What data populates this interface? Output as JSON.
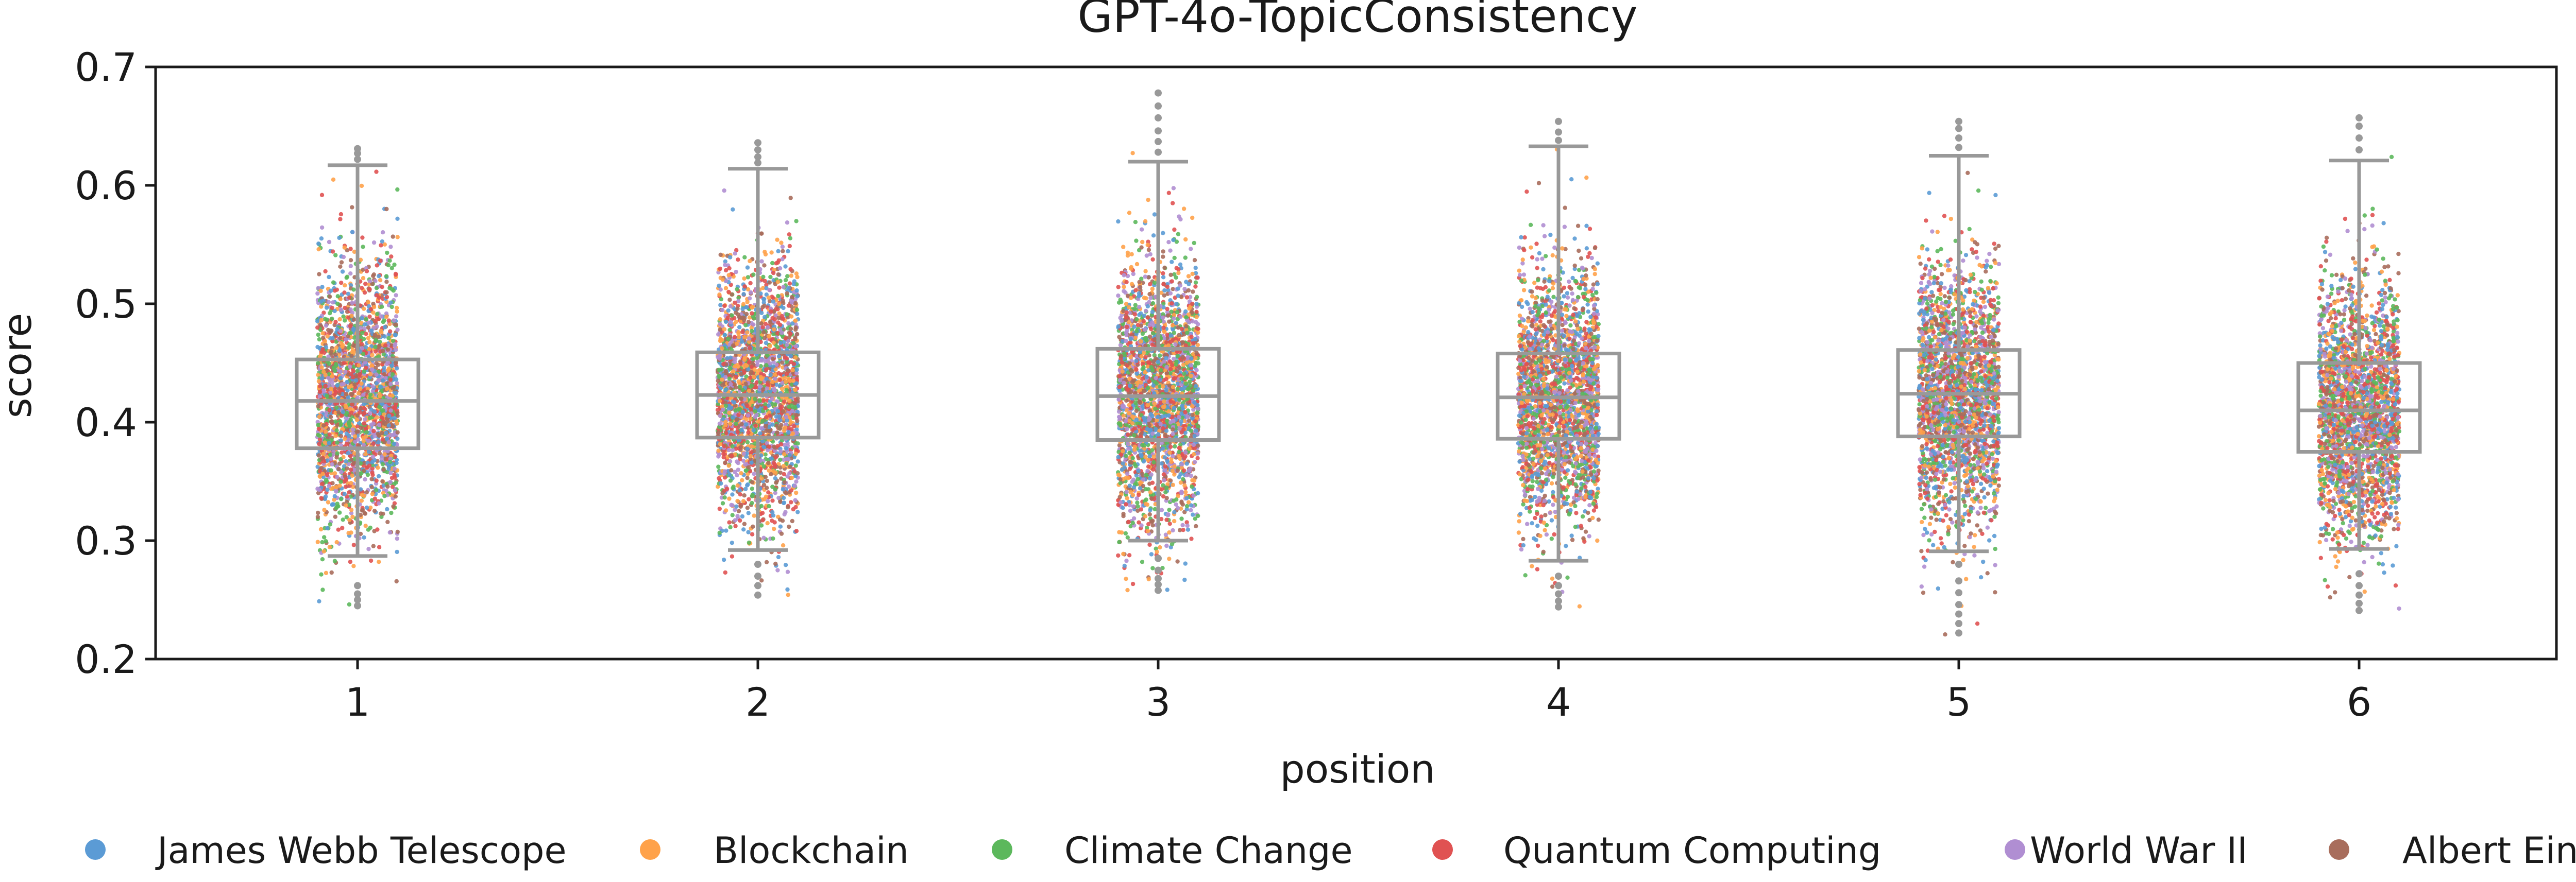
{
  "chart_data": {
    "type": "box-strip",
    "title": "GPT-4o-TopicConsistency",
    "xlabel": "position",
    "ylabel": "score",
    "ylim": [
      0.2,
      0.7
    ],
    "yticks": [
      "0.2",
      "0.3",
      "0.4",
      "0.5",
      "0.6",
      "0.7"
    ],
    "categories": [
      "1",
      "2",
      "3",
      "4",
      "5",
      "6"
    ],
    "grid": false,
    "legend": {
      "placement": "bottom",
      "entries": [
        {
          "name": "James Webb Telescope",
          "color": "#5b9bd5"
        },
        {
          "name": "Blockchain",
          "color": "#ffa24a"
        },
        {
          "name": "Climate Change",
          "color": "#5cb85c"
        },
        {
          "name": "Quantum Computing",
          "color": "#e05252"
        },
        {
          "name": "World War II",
          "color": "#b08ed2"
        },
        {
          "name": "Albert Einstein",
          "color": "#a86d5c"
        }
      ]
    },
    "box_color": "#999999",
    "outlier_color": "#999999",
    "boxes": [
      {
        "position": "1",
        "q1": 0.378,
        "median": 0.418,
        "q3": 0.453,
        "whisker_low": 0.287,
        "whisker_high": 0.617,
        "outliers": [
          0.245,
          0.25,
          0.255,
          0.262,
          0.622,
          0.627,
          0.631
        ],
        "points_min": 0.245,
        "points_max": 0.633
      },
      {
        "position": "2",
        "q1": 0.387,
        "median": 0.423,
        "q3": 0.459,
        "whisker_low": 0.292,
        "whisker_high": 0.614,
        "outliers": [
          0.254,
          0.262,
          0.27,
          0.28,
          0.619,
          0.624,
          0.63,
          0.636
        ],
        "points_min": 0.252,
        "points_max": 0.637
      },
      {
        "position": "3",
        "q1": 0.385,
        "median": 0.422,
        "q3": 0.462,
        "whisker_low": 0.3,
        "whisker_high": 0.62,
        "outliers": [
          0.258,
          0.263,
          0.268,
          0.275,
          0.285,
          0.628,
          0.637,
          0.646,
          0.657,
          0.667,
          0.678
        ],
        "points_min": 0.258,
        "points_max": 0.678
      },
      {
        "position": "4",
        "q1": 0.386,
        "median": 0.421,
        "q3": 0.458,
        "whisker_low": 0.283,
        "whisker_high": 0.633,
        "outliers": [
          0.244,
          0.249,
          0.255,
          0.262,
          0.27,
          0.638,
          0.645,
          0.654
        ],
        "points_min": 0.244,
        "points_max": 0.654
      },
      {
        "position": "5",
        "q1": 0.388,
        "median": 0.424,
        "q3": 0.461,
        "whisker_low": 0.291,
        "whisker_high": 0.625,
        "outliers": [
          0.222,
          0.23,
          0.238,
          0.246,
          0.256,
          0.266,
          0.28,
          0.632,
          0.64,
          0.648,
          0.654
        ],
        "points_min": 0.22,
        "points_max": 0.655
      },
      {
        "position": "6",
        "q1": 0.375,
        "median": 0.41,
        "q3": 0.45,
        "whisker_low": 0.293,
        "whisker_high": 0.621,
        "outliers": [
          0.241,
          0.247,
          0.254,
          0.262,
          0.272,
          0.63,
          0.64,
          0.65,
          0.657
        ],
        "points_min": 0.24,
        "points_max": 0.657
      }
    ],
    "points_per_category": 2400
  }
}
